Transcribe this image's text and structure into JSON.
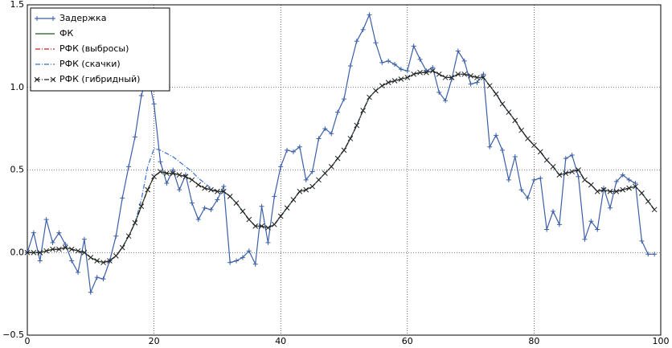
{
  "chart_data": {
    "type": "line",
    "x": [
      0,
      1,
      2,
      3,
      4,
      5,
      6,
      7,
      8,
      9,
      10,
      11,
      12,
      13,
      14,
      15,
      16,
      17,
      18,
      19,
      20,
      21,
      22,
      23,
      24,
      25,
      26,
      27,
      28,
      29,
      30,
      31,
      32,
      33,
      34,
      35,
      36,
      37,
      38,
      39,
      40,
      41,
      42,
      43,
      44,
      45,
      46,
      47,
      48,
      49,
      50,
      51,
      52,
      53,
      54,
      55,
      56,
      57,
      58,
      59,
      60,
      61,
      62,
      63,
      64,
      65,
      66,
      67,
      68,
      69,
      70,
      71,
      72,
      73,
      74,
      75,
      76,
      77,
      78,
      79,
      80,
      81,
      82,
      83,
      84,
      85,
      86,
      87,
      88,
      89,
      90,
      91,
      92,
      93,
      94,
      95,
      96,
      97,
      98,
      99
    ],
    "xlim": [
      0,
      100
    ],
    "xticks": [
      0,
      20,
      40,
      60,
      80,
      100
    ],
    "ylim": [
      -0.5,
      1.5
    ],
    "yticks": [
      {
        "value": -0.5,
        "label": "−0.5"
      },
      {
        "value": 0,
        "label": "0.0"
      },
      0.5,
      {
        "value": 1,
        "label": "1.0"
      },
      1.5
    ],
    "grid": true,
    "legend": "upper left",
    "series": [
      {
        "name": "Задержка",
        "color": "#3a5fa8",
        "dash": "solid",
        "marker": "plus",
        "values": [
          0,
          0.12,
          -0.05,
          0.2,
          0.06,
          0.12,
          0.05,
          -0.05,
          -0.12,
          0.08,
          -0.24,
          -0.15,
          -0.16,
          -0.05,
          0.1,
          0.33,
          0.52,
          0.7,
          0.95,
          1.08,
          0.9,
          0.55,
          0.42,
          0.5,
          0.38,
          0.47,
          0.3,
          0.2,
          0.27,
          0.26,
          0.32,
          0.4,
          -0.06,
          -0.05,
          -0.03,
          0.01,
          -0.07,
          0.28,
          0.06,
          0.34,
          0.52,
          0.62,
          0.61,
          0.64,
          0.44,
          0.49,
          0.69,
          0.75,
          0.72,
          0.85,
          0.93,
          1.13,
          1.28,
          1.35,
          1.44,
          1.27,
          1.15,
          1.16,
          1.14,
          1.11,
          1.1,
          1.25,
          1.17,
          1.1,
          1.12,
          0.97,
          0.92,
          1.05,
          1.22,
          1.16,
          1.02,
          1.03,
          1.08,
          0.64,
          0.71,
          0.62,
          0.44,
          0.58,
          0.38,
          0.33,
          0.44,
          0.45,
          0.14,
          0.25,
          0.17,
          0.57,
          0.59,
          0.46,
          0.08,
          0.19,
          0.14,
          0.39,
          0.27,
          0.43,
          0.47,
          0.44,
          0.42,
          0.07,
          -0.01,
          -0.01
        ]
      },
      {
        "name": "ФК",
        "color": "#1e5a1e",
        "dash": "solid",
        "marker": "none",
        "values": [
          0,
          0,
          0,
          0.01,
          0.02,
          0.02,
          0.03,
          0.02,
          0.01,
          0,
          -0.03,
          -0.05,
          -0.06,
          -0.05,
          -0.02,
          0.03,
          0.1,
          0.18,
          0.28,
          0.38,
          0.46,
          0.49,
          0.48,
          0.48,
          0.47,
          0.46,
          0.44,
          0.41,
          0.39,
          0.38,
          0.37,
          0.37,
          0.34,
          0.3,
          0.25,
          0.2,
          0.16,
          0.16,
          0.15,
          0.17,
          0.22,
          0.27,
          0.32,
          0.37,
          0.38,
          0.4,
          0.44,
          0.48,
          0.52,
          0.57,
          0.62,
          0.69,
          0.77,
          0.86,
          0.94,
          0.98,
          1.01,
          1.03,
          1.04,
          1.05,
          1.06,
          1.08,
          1.09,
          1.09,
          1.1,
          1.08,
          1.06,
          1.06,
          1.08,
          1.08,
          1.07,
          1.06,
          1.06,
          1.01,
          0.96,
          0.9,
          0.85,
          0.8,
          0.74,
          0.69,
          0.65,
          0.61,
          0.56,
          0.52,
          0.47,
          0.48,
          0.49,
          0.5,
          0.44,
          0.41,
          0.37,
          0.38,
          0.37,
          0.37,
          0.38,
          0.39,
          0.4,
          0.36,
          0.31,
          0.26
        ]
      },
      {
        "name": "РФК (выбросы)",
        "color": "#cc2222",
        "dash": "dashdot",
        "marker": "none",
        "values": [
          0,
          0,
          0,
          0.01,
          0.02,
          0.02,
          0.03,
          0.02,
          0.01,
          0,
          -0.03,
          -0.05,
          -0.06,
          -0.05,
          -0.02,
          0.03,
          0.1,
          0.18,
          0.28,
          0.38,
          0.46,
          0.49,
          0.48,
          0.48,
          0.47,
          0.46,
          0.44,
          0.41,
          0.39,
          0.38,
          0.37,
          0.37,
          0.34,
          0.3,
          0.25,
          0.2,
          0.16,
          0.16,
          0.15,
          0.17,
          0.22,
          0.27,
          0.32,
          0.37,
          0.38,
          0.4,
          0.44,
          0.48,
          0.52,
          0.57,
          0.62,
          0.69,
          0.77,
          0.86,
          0.94,
          0.98,
          1.01,
          1.03,
          1.04,
          1.05,
          1.06,
          1.08,
          1.09,
          1.09,
          1.1,
          1.08,
          1.06,
          1.06,
          1.08,
          1.08,
          1.07,
          1.06,
          1.06,
          1.01,
          0.96,
          0.9,
          0.85,
          0.8,
          0.74,
          0.69,
          0.65,
          0.61,
          0.56,
          0.52,
          0.47,
          0.48,
          0.49,
          0.5,
          0.44,
          0.41,
          0.37,
          0.38,
          0.37,
          0.37,
          0.38,
          0.39,
          0.4,
          0.36,
          0.31,
          0.26
        ]
      },
      {
        "name": "РФК (скачки)",
        "color": "#3a6fd0",
        "dash": "dashdot",
        "marker": "none",
        "values": [
          0,
          0,
          0,
          0.01,
          0.02,
          0.02,
          0.03,
          0.02,
          0.01,
          0,
          -0.03,
          -0.05,
          -0.06,
          -0.05,
          -0.02,
          0.03,
          0.1,
          0.18,
          0.32,
          0.52,
          0.63,
          0.62,
          0.6,
          0.58,
          0.55,
          0.52,
          0.49,
          0.45,
          0.42,
          0.39,
          0.37,
          0.37,
          0.34,
          0.3,
          0.25,
          0.2,
          0.16,
          0.16,
          0.15,
          0.17,
          0.22,
          0.27,
          0.32,
          0.37,
          0.38,
          0.4,
          0.44,
          0.48,
          0.52,
          0.57,
          0.62,
          0.69,
          0.77,
          0.86,
          0.94,
          0.98,
          1.01,
          1.03,
          1.04,
          1.05,
          1.06,
          1.08,
          1.09,
          1.09,
          1.1,
          1.08,
          1.06,
          1.06,
          1.08,
          1.08,
          1.07,
          1.06,
          1.06,
          1.01,
          0.96,
          0.9,
          0.85,
          0.8,
          0.74,
          0.69,
          0.65,
          0.61,
          0.56,
          0.52,
          0.47,
          0.48,
          0.49,
          0.5,
          0.44,
          0.41,
          0.37,
          0.38,
          0.37,
          0.37,
          0.38,
          0.39,
          0.4,
          0.36,
          0.31,
          0.26
        ]
      },
      {
        "name": "РФК (гибридный)",
        "color": "#222222",
        "dash": "dashdot",
        "marker": "x",
        "values": [
          0,
          0,
          0,
          0.01,
          0.02,
          0.02,
          0.03,
          0.02,
          0.01,
          0,
          -0.03,
          -0.05,
          -0.06,
          -0.05,
          -0.02,
          0.03,
          0.1,
          0.18,
          0.28,
          0.38,
          0.46,
          0.49,
          0.48,
          0.48,
          0.47,
          0.46,
          0.44,
          0.41,
          0.39,
          0.38,
          0.37,
          0.37,
          0.34,
          0.3,
          0.25,
          0.2,
          0.16,
          0.16,
          0.15,
          0.17,
          0.22,
          0.27,
          0.32,
          0.37,
          0.38,
          0.4,
          0.44,
          0.48,
          0.52,
          0.57,
          0.62,
          0.69,
          0.77,
          0.86,
          0.94,
          0.98,
          1.01,
          1.03,
          1.04,
          1.05,
          1.06,
          1.08,
          1.09,
          1.09,
          1.1,
          1.08,
          1.06,
          1.06,
          1.08,
          1.08,
          1.07,
          1.06,
          1.06,
          1.01,
          0.96,
          0.9,
          0.85,
          0.8,
          0.74,
          0.69,
          0.65,
          0.61,
          0.56,
          0.52,
          0.47,
          0.48,
          0.49,
          0.5,
          0.44,
          0.41,
          0.37,
          0.38,
          0.37,
          0.37,
          0.38,
          0.39,
          0.4,
          0.36,
          0.31,
          0.26
        ]
      }
    ]
  }
}
